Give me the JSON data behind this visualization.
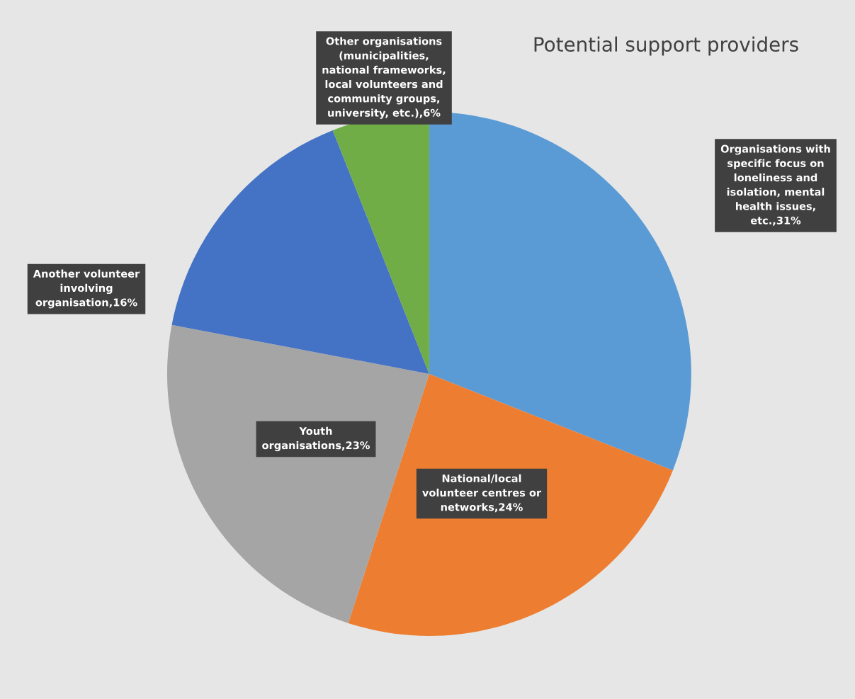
{
  "chart_data": {
    "type": "pie",
    "title": "Potential support providers",
    "categories": [
      "Organisations with\nspecific focus on\nloneliness and\nisolation, mental\nhealth issues,\netc.",
      "National/local\nvolunteer centres or\nnetworks",
      "Youth\norganisations",
      "Another volunteer\ninvolving\norganisation",
      "Other organisations\n(municipalities,\nnational frameworks,\nlocal volunteers and\ncommunity groups,\nuniversity, etc.)"
    ],
    "values": [
      31,
      24,
      23,
      16,
      6
    ],
    "value_labels": [
      "31%",
      "24%",
      "23%",
      "16%",
      "6%"
    ],
    "colors": [
      "#5b9bd5",
      "#ed7d31",
      "#a5a5a5",
      "#4472c4",
      "#70ad47"
    ],
    "legend": false
  }
}
